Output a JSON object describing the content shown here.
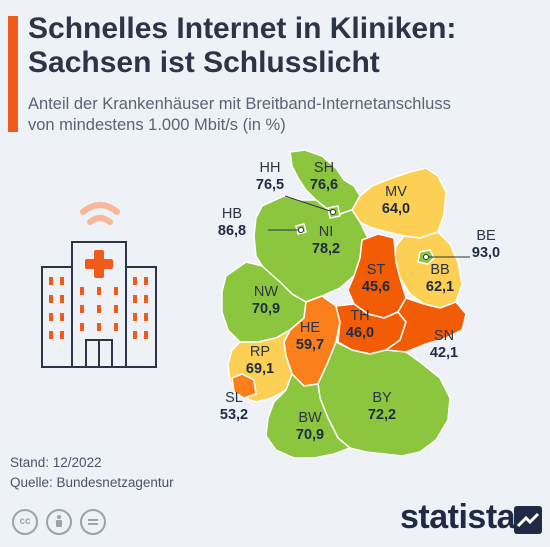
{
  "header": {
    "title_line1": "Schnelles Internet in Kliniken:",
    "title_line2": "Sachsen ist Schlusslicht",
    "subtitle_line1": "Anteil der Krankenhäuser mit Breitband-Internetanschluss",
    "subtitle_line2": "von mindestens 1.000 Mbit/s (in %)"
  },
  "colors": {
    "accent": "#f05a1a",
    "green": "#8cc63f",
    "yellow": "#fcd055",
    "orange": "#fb7f1a",
    "red_orange": "#f25c05"
  },
  "states": [
    {
      "code": "SH",
      "value": "76,6"
    },
    {
      "code": "HH",
      "value": "76,5"
    },
    {
      "code": "MV",
      "value": "64,0"
    },
    {
      "code": "HB",
      "value": "86,8"
    },
    {
      "code": "NI",
      "value": "78,2"
    },
    {
      "code": "BE",
      "value": "93,0"
    },
    {
      "code": "ST",
      "value": "45,6"
    },
    {
      "code": "BB",
      "value": "62,1"
    },
    {
      "code": "NW",
      "value": "70,9"
    },
    {
      "code": "HE",
      "value": "59,7"
    },
    {
      "code": "TH",
      "value": "46,0"
    },
    {
      "code": "SN",
      "value": "42,1"
    },
    {
      "code": "RP",
      "value": "69,1"
    },
    {
      "code": "SL",
      "value": "53,2"
    },
    {
      "code": "BW",
      "value": "70,9"
    },
    {
      "code": "BY",
      "value": "72,2"
    }
  ],
  "footer": {
    "stand": "Stand: 12/2022",
    "quelle": "Quelle: Bundesnetzagentur",
    "cc_icons": [
      "cc-icon",
      "attribution-icon",
      "no-derivatives-icon"
    ],
    "cc_label": "cc",
    "brand": "statista"
  }
}
